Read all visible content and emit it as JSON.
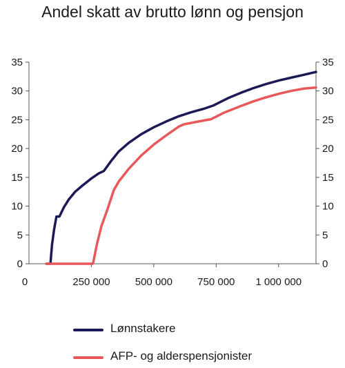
{
  "chart_data": {
    "type": "line",
    "title": "Andel skatt av brutto lønn og pensjon",
    "xlabel": "",
    "ylabel": "",
    "xlim": [
      0,
      1150000
    ],
    "ylim": [
      0,
      35
    ],
    "x_ticks": [
      0,
      250000,
      500000,
      750000,
      1000000
    ],
    "x_tick_labels": [
      "0",
      "250 000",
      "500 000",
      "750 000",
      "1 000 000"
    ],
    "y_ticks": [
      0,
      5,
      10,
      15,
      20,
      25,
      30,
      35
    ],
    "y_tick_labels": [
      "0",
      "5",
      "10",
      "15",
      "20",
      "25",
      "30",
      "35"
    ],
    "grid": false,
    "legend_position": "bottom",
    "series": [
      {
        "name": "Lønnstakere",
        "color": "#1b1a57",
        "points": [
          [
            70000,
            0
          ],
          [
            86000,
            0
          ],
          [
            92000,
            3.2
          ],
          [
            100000,
            5.8
          ],
          [
            110000,
            8.2
          ],
          [
            122000,
            8.2
          ],
          [
            140000,
            9.8
          ],
          [
            160000,
            11.2
          ],
          [
            185000,
            12.5
          ],
          [
            215000,
            13.6
          ],
          [
            250000,
            14.8
          ],
          [
            280000,
            15.7
          ],
          [
            300000,
            16.1
          ],
          [
            330000,
            17.9
          ],
          [
            360000,
            19.5
          ],
          [
            400000,
            21.0
          ],
          [
            450000,
            22.5
          ],
          [
            500000,
            23.7
          ],
          [
            550000,
            24.7
          ],
          [
            600000,
            25.6
          ],
          [
            650000,
            26.3
          ],
          [
            700000,
            26.9
          ],
          [
            740000,
            27.5
          ],
          [
            800000,
            28.8
          ],
          [
            850000,
            29.7
          ],
          [
            900000,
            30.5
          ],
          [
            950000,
            31.2
          ],
          [
            1000000,
            31.8
          ],
          [
            1050000,
            32.3
          ],
          [
            1100000,
            32.8
          ],
          [
            1150000,
            33.3
          ]
        ]
      },
      {
        "name": "AFP- og alderspensjonister",
        "color": "#e8575a",
        "points": [
          [
            70000,
            0
          ],
          [
            255000,
            0
          ],
          [
            258000,
            0.3
          ],
          [
            270000,
            3.0
          ],
          [
            290000,
            6.5
          ],
          [
            315000,
            9.5
          ],
          [
            340000,
            12.8
          ],
          [
            360000,
            14.3
          ],
          [
            400000,
            16.5
          ],
          [
            450000,
            18.8
          ],
          [
            500000,
            20.7
          ],
          [
            550000,
            22.3
          ],
          [
            600000,
            23.8
          ],
          [
            620000,
            24.2
          ],
          [
            680000,
            24.7
          ],
          [
            730000,
            25.1
          ],
          [
            780000,
            26.2
          ],
          [
            850000,
            27.4
          ],
          [
            900000,
            28.2
          ],
          [
            950000,
            28.9
          ],
          [
            1000000,
            29.5
          ],
          [
            1050000,
            30.0
          ],
          [
            1100000,
            30.4
          ],
          [
            1150000,
            30.6
          ]
        ]
      }
    ]
  }
}
